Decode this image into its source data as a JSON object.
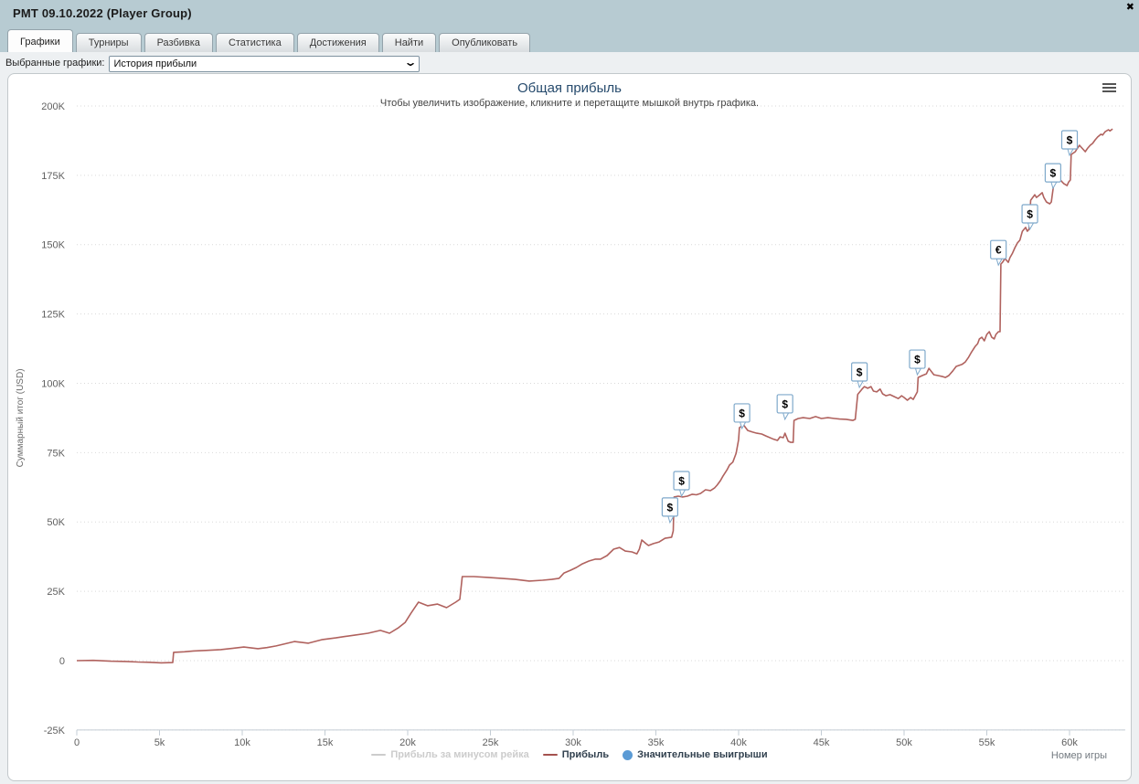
{
  "window": {
    "title": "PMT 09.10.2022 (Player Group)",
    "close_icon": "✖"
  },
  "tabs": [
    {
      "label": "Графики",
      "active": true
    },
    {
      "label": "Турниры",
      "active": false
    },
    {
      "label": "Разбивка",
      "active": false
    },
    {
      "label": "Статистика",
      "active": false
    },
    {
      "label": "Достижения",
      "active": false
    },
    {
      "label": "Найти",
      "active": false
    },
    {
      "label": "Опубликовать",
      "active": false
    }
  ],
  "filter": {
    "label": "Выбранные графики:",
    "selected": "История прибыли"
  },
  "chart_data": {
    "type": "line",
    "title": "Общая прибыль",
    "subtitle": "Чтобы увеличить изображение, кликните и перетащите мышкой внутрь графика.",
    "xlabel": "Номер игры",
    "ylabel": "Суммарный итог (USD)",
    "xlim": [
      0,
      62600
    ],
    "ylim": [
      -25000,
      200000
    ],
    "grid": "dotted-horizontal",
    "legend_position": "bottom-center",
    "x_ticks": [
      {
        "value": 0,
        "label": "0"
      },
      {
        "value": 5000,
        "label": "5k"
      },
      {
        "value": 10000,
        "label": "10k"
      },
      {
        "value": 15000,
        "label": "15k"
      },
      {
        "value": 20000,
        "label": "20k"
      },
      {
        "value": 25000,
        "label": "25k"
      },
      {
        "value": 30000,
        "label": "30k"
      },
      {
        "value": 35000,
        "label": "35k"
      },
      {
        "value": 40000,
        "label": "40k"
      },
      {
        "value": 45000,
        "label": "45k"
      },
      {
        "value": 50000,
        "label": "50k"
      },
      {
        "value": 55000,
        "label": "55k"
      },
      {
        "value": 60000,
        "label": "60k"
      }
    ],
    "y_ticks": [
      {
        "value": -25000,
        "label": "-25K"
      },
      {
        "value": 0,
        "label": "0"
      },
      {
        "value": 25000,
        "label": "25K"
      },
      {
        "value": 50000,
        "label": "50K"
      },
      {
        "value": 75000,
        "label": "75K"
      },
      {
        "value": 100000,
        "label": "100K"
      },
      {
        "value": 125000,
        "label": "125K"
      },
      {
        "value": 150000,
        "label": "150K"
      },
      {
        "value": 175000,
        "label": "175K"
      },
      {
        "value": 200000,
        "label": "200K"
      }
    ],
    "legend": [
      {
        "label": "Прибыль за минусом рейка",
        "type": "line",
        "color": "#cccccc",
        "text_color": "#cccccc",
        "enabled": false
      },
      {
        "label": "Прибыль",
        "type": "line",
        "color": "#a4524e",
        "text_color": "#32414f",
        "enabled": true
      },
      {
        "label": "Значительные выигрыши",
        "type": "circle",
        "color": "#5b9bd5",
        "text_color": "#32414f",
        "enabled": true
      }
    ],
    "series": [
      {
        "name": "Прибыль",
        "color": "#b0625e",
        "points": [
          [
            0,
            0
          ],
          [
            1000,
            100
          ],
          [
            2050,
            -200
          ],
          [
            3000,
            -300
          ],
          [
            3700,
            -500
          ],
          [
            4400,
            -600
          ],
          [
            5100,
            -800
          ],
          [
            5800,
            -700
          ],
          [
            5850,
            3000
          ],
          [
            6500,
            3200
          ],
          [
            7050,
            3500
          ],
          [
            7800,
            3700
          ],
          [
            8700,
            4000
          ],
          [
            9400,
            4400
          ],
          [
            10100,
            4900
          ],
          [
            10950,
            4300
          ],
          [
            11500,
            4700
          ],
          [
            12050,
            5300
          ],
          [
            12600,
            6100
          ],
          [
            13150,
            6900
          ],
          [
            14000,
            6300
          ],
          [
            14850,
            7600
          ],
          [
            15650,
            8200
          ],
          [
            16200,
            8700
          ],
          [
            16800,
            9200
          ],
          [
            17600,
            9900
          ],
          [
            18350,
            10900
          ],
          [
            18900,
            9900
          ],
          [
            19450,
            11900
          ],
          [
            19850,
            13800
          ],
          [
            20200,
            17100
          ],
          [
            20500,
            19800
          ],
          [
            20650,
            21100
          ],
          [
            21200,
            19800
          ],
          [
            21800,
            20400
          ],
          [
            22350,
            19100
          ],
          [
            22900,
            21100
          ],
          [
            23150,
            22100
          ],
          [
            23300,
            30300
          ],
          [
            24000,
            30300
          ],
          [
            24850,
            30000
          ],
          [
            25650,
            29700
          ],
          [
            26500,
            29300
          ],
          [
            27350,
            28700
          ],
          [
            28150,
            29000
          ],
          [
            28700,
            29300
          ],
          [
            29150,
            29700
          ],
          [
            29450,
            31600
          ],
          [
            29850,
            32600
          ],
          [
            30200,
            33600
          ],
          [
            30550,
            34900
          ],
          [
            30950,
            35900
          ],
          [
            31350,
            36600
          ],
          [
            31650,
            36600
          ],
          [
            32050,
            37900
          ],
          [
            32450,
            40200
          ],
          [
            32800,
            40800
          ],
          [
            33150,
            39500
          ],
          [
            33550,
            39200
          ],
          [
            33850,
            38500
          ],
          [
            34000,
            40200
          ],
          [
            34150,
            43500
          ],
          [
            34400,
            42200
          ],
          [
            34550,
            41500
          ],
          [
            34850,
            42200
          ],
          [
            35200,
            42800
          ],
          [
            35550,
            44100
          ],
          [
            35950,
            44500
          ],
          [
            36050,
            46800
          ],
          [
            36100,
            59000
          ],
          [
            36350,
            59300
          ],
          [
            36600,
            59000
          ],
          [
            36900,
            59300
          ],
          [
            37200,
            60000
          ],
          [
            37450,
            59800
          ],
          [
            37700,
            60300
          ],
          [
            38000,
            61600
          ],
          [
            38300,
            61300
          ],
          [
            38550,
            62300
          ],
          [
            38700,
            63300
          ],
          [
            38900,
            64900
          ],
          [
            39050,
            66500
          ],
          [
            39300,
            68800
          ],
          [
            39450,
            70500
          ],
          [
            39650,
            71600
          ],
          [
            39850,
            74800
          ],
          [
            40000,
            79700
          ],
          [
            40050,
            84000
          ],
          [
            40300,
            85000
          ],
          [
            40550,
            83000
          ],
          [
            40850,
            82400
          ],
          [
            41100,
            82000
          ],
          [
            41400,
            81700
          ],
          [
            41650,
            81000
          ],
          [
            42050,
            80000
          ],
          [
            42350,
            79400
          ],
          [
            42500,
            80700
          ],
          [
            42700,
            80400
          ],
          [
            42800,
            82000
          ],
          [
            43000,
            79100
          ],
          [
            43150,
            78700
          ],
          [
            43300,
            78700
          ],
          [
            43350,
            86600
          ],
          [
            43600,
            87300
          ],
          [
            43900,
            87600
          ],
          [
            44300,
            87300
          ],
          [
            44650,
            88000
          ],
          [
            45000,
            87300
          ],
          [
            45400,
            87600
          ],
          [
            45800,
            87300
          ],
          [
            46100,
            87100
          ],
          [
            46500,
            87000
          ],
          [
            46900,
            86600
          ],
          [
            47050,
            87000
          ],
          [
            47200,
            96000
          ],
          [
            47450,
            97800
          ],
          [
            47600,
            98800
          ],
          [
            47800,
            98200
          ],
          [
            48000,
            98800
          ],
          [
            48150,
            97200
          ],
          [
            48350,
            96900
          ],
          [
            48550,
            97900
          ],
          [
            48700,
            96200
          ],
          [
            48900,
            95500
          ],
          [
            49150,
            95900
          ],
          [
            49400,
            95200
          ],
          [
            49650,
            94500
          ],
          [
            49850,
            95500
          ],
          [
            50000,
            94900
          ],
          [
            50200,
            93900
          ],
          [
            50400,
            94900
          ],
          [
            50550,
            94200
          ],
          [
            50800,
            96900
          ],
          [
            50850,
            102100
          ],
          [
            51100,
            102800
          ],
          [
            51350,
            103400
          ],
          [
            51500,
            105400
          ],
          [
            51800,
            103100
          ],
          [
            52050,
            102800
          ],
          [
            52350,
            102400
          ],
          [
            52500,
            102100
          ],
          [
            52700,
            102800
          ],
          [
            52950,
            104500
          ],
          [
            53150,
            106100
          ],
          [
            53500,
            106800
          ],
          [
            53700,
            107700
          ],
          [
            53900,
            109400
          ],
          [
            54050,
            111000
          ],
          [
            54300,
            113300
          ],
          [
            54450,
            114300
          ],
          [
            54550,
            116000
          ],
          [
            54700,
            116600
          ],
          [
            54850,
            115300
          ],
          [
            55000,
            117600
          ],
          [
            55150,
            118600
          ],
          [
            55300,
            116600
          ],
          [
            55450,
            116000
          ],
          [
            55550,
            117600
          ],
          [
            55700,
            118600
          ],
          [
            55800,
            118600
          ],
          [
            55850,
            143000
          ],
          [
            55950,
            143600
          ],
          [
            56100,
            145000
          ],
          [
            56300,
            143600
          ],
          [
            56400,
            145300
          ],
          [
            56550,
            146900
          ],
          [
            56700,
            148900
          ],
          [
            56850,
            150600
          ],
          [
            57000,
            151600
          ],
          [
            57150,
            154800
          ],
          [
            57350,
            156200
          ],
          [
            57450,
            154800
          ],
          [
            57550,
            155500
          ],
          [
            57650,
            166000
          ],
          [
            57900,
            168000
          ],
          [
            58000,
            167000
          ],
          [
            58150,
            167700
          ],
          [
            58350,
            168700
          ],
          [
            58450,
            167000
          ],
          [
            58600,
            165400
          ],
          [
            58800,
            164700
          ],
          [
            58900,
            165400
          ],
          [
            59050,
            172000
          ],
          [
            59300,
            173000
          ],
          [
            59400,
            173600
          ],
          [
            59550,
            172600
          ],
          [
            59650,
            172000
          ],
          [
            59850,
            171300
          ],
          [
            59950,
            172600
          ],
          [
            60050,
            173300
          ],
          [
            60100,
            182500
          ],
          [
            60350,
            183500
          ],
          [
            60450,
            184500
          ],
          [
            60600,
            185800
          ],
          [
            60800,
            184500
          ],
          [
            60950,
            183500
          ],
          [
            61100,
            184800
          ],
          [
            61250,
            185800
          ],
          [
            61400,
            186500
          ],
          [
            61550,
            187800
          ],
          [
            61700,
            188800
          ],
          [
            61900,
            189800
          ],
          [
            62000,
            189500
          ],
          [
            62150,
            190700
          ],
          [
            62350,
            191400
          ],
          [
            62450,
            191000
          ],
          [
            62600,
            191700
          ]
        ]
      }
    ],
    "win_markers": [
      {
        "x": 35850,
        "y": 55400,
        "symbol": "$"
      },
      {
        "x": 36550,
        "y": 64900,
        "symbol": "$"
      },
      {
        "x": 40200,
        "y": 89300,
        "symbol": "$"
      },
      {
        "x": 42800,
        "y": 92600,
        "symbol": "$"
      },
      {
        "x": 47300,
        "y": 104100,
        "symbol": "$"
      },
      {
        "x": 50800,
        "y": 108700,
        "symbol": "$"
      },
      {
        "x": 55700,
        "y": 148200,
        "symbol": "€"
      },
      {
        "x": 57600,
        "y": 161100,
        "symbol": "$"
      },
      {
        "x": 59000,
        "y": 175900,
        "symbol": "$"
      },
      {
        "x": 60000,
        "y": 187800,
        "symbol": "$"
      }
    ],
    "marker_style": {
      "border_color": "#7fa9cb",
      "fill": "#ffffff",
      "text_color": "#000000"
    }
  }
}
